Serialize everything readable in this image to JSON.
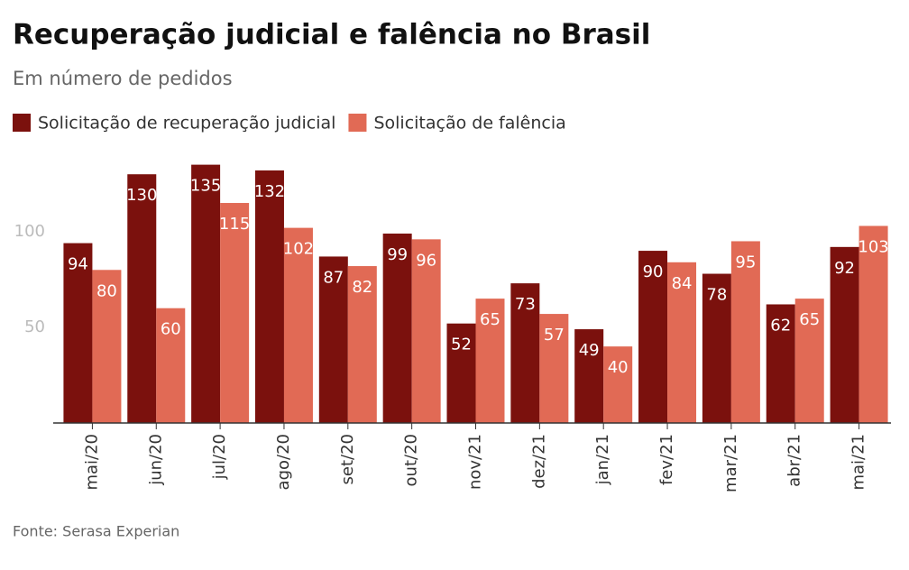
{
  "chart_data": {
    "type": "bar",
    "title": "Recuperação judicial e falência no Brasil",
    "subtitle": "Em número de pedidos",
    "source": "Fonte: Serasa Experian",
    "categories": [
      "mai/20",
      "jun/20",
      "jul/20",
      "ago/20",
      "set/20",
      "out/20",
      "nov/21",
      "dez/21",
      "jan/21",
      "fev/21",
      "mar/21",
      "abr/21",
      "mai/21"
    ],
    "series": [
      {
        "name": "Solicitação de recuperação judicial",
        "color": "#7b110d",
        "values": [
          94,
          130,
          135,
          132,
          87,
          99,
          52,
          73,
          49,
          90,
          78,
          62,
          92
        ]
      },
      {
        "name": "Solicitação de falência",
        "color": "#e16a55",
        "values": [
          80,
          60,
          115,
          102,
          82,
          96,
          65,
          57,
          40,
          84,
          95,
          65,
          103
        ]
      }
    ],
    "ylim": [
      0,
      140
    ],
    "yticks": [
      50,
      100
    ],
    "grid": false
  }
}
